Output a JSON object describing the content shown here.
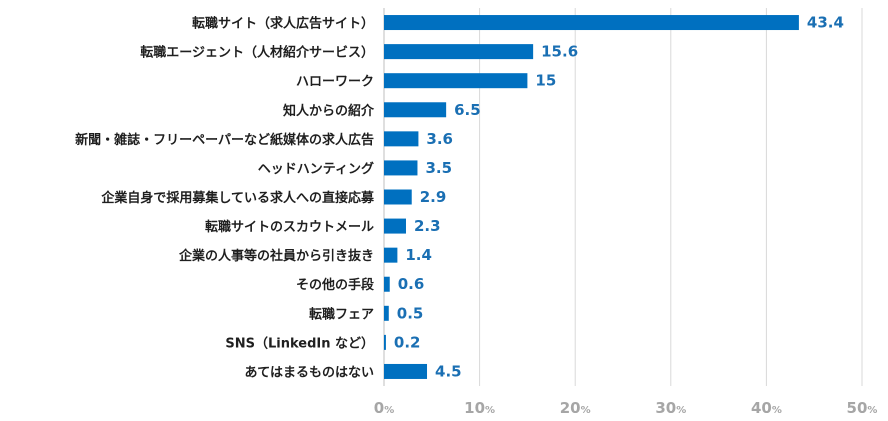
{
  "chart_data": {
    "type": "bar",
    "orientation": "horizontal",
    "categories": [
      "転職サイト（求人広告サイト）",
      "転職エージェント（人材紹介サービス）",
      "ハローワーク",
      "知人からの紹介",
      "新聞・雑誌・フリーペーパーなど紙媒体の求人広告",
      "ヘッドハンティング",
      "企業自身で採用募集している求人への直接応募",
      "転職サイトのスカウトメール",
      "企業の人事等の社員から引き抜き",
      "その他の手段",
      "転職フェア",
      "SNS（LinkedIn など）",
      "あてはまるものはない"
    ],
    "values": [
      43.4,
      15.6,
      15,
      6.5,
      3.6,
      3.5,
      2.9,
      2.3,
      1.4,
      0.6,
      0.5,
      0.2,
      4.5
    ],
    "value_labels": [
      "43.4",
      "15.6",
      "15",
      "6.5",
      "3.6",
      "3.5",
      "2.9",
      "2.3",
      "1.4",
      "0.6",
      "0.5",
      "0.2",
      "4.5"
    ],
    "xlim": [
      0,
      50
    ],
    "xticks": [
      "0",
      "10",
      "20",
      "30",
      "40",
      "50"
    ],
    "xtick_unit": "%",
    "title": "",
    "xlabel": "",
    "ylabel": "",
    "grid": true,
    "bar_color": "#0070c0",
    "label_color": "#1a6fb3"
  }
}
